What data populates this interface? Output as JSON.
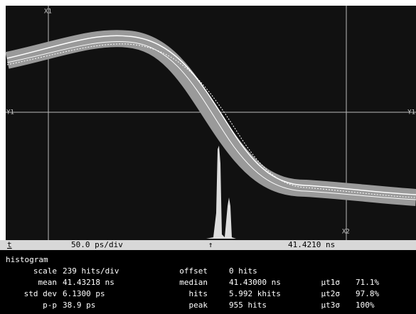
{
  "markers": {
    "x1": "X1",
    "x2": "X2",
    "y1_left": "Y1",
    "y1_right": "Y1"
  },
  "status_bar": {
    "icon": "t",
    "timebase": "50.0 ps/div",
    "trigger": "↑",
    "position": "41.4210 ns"
  },
  "histogram": {
    "title": "histogram",
    "rows": [
      [
        "scale",
        "239 hits/div",
        "offset",
        "0 hits"
      ],
      [
        "mean",
        "41.43218 ns",
        "median",
        "41.43000 ns",
        "μt1σ",
        "71.1%"
      ],
      [
        "std dev",
        "6.1300 ps",
        "hits",
        "5.992 khits",
        "μt2σ",
        "97.8%"
      ],
      [
        "p-p",
        "38.9 ps",
        "peak",
        "955 hits",
        "μt3σ",
        "100%"
      ]
    ]
  }
}
